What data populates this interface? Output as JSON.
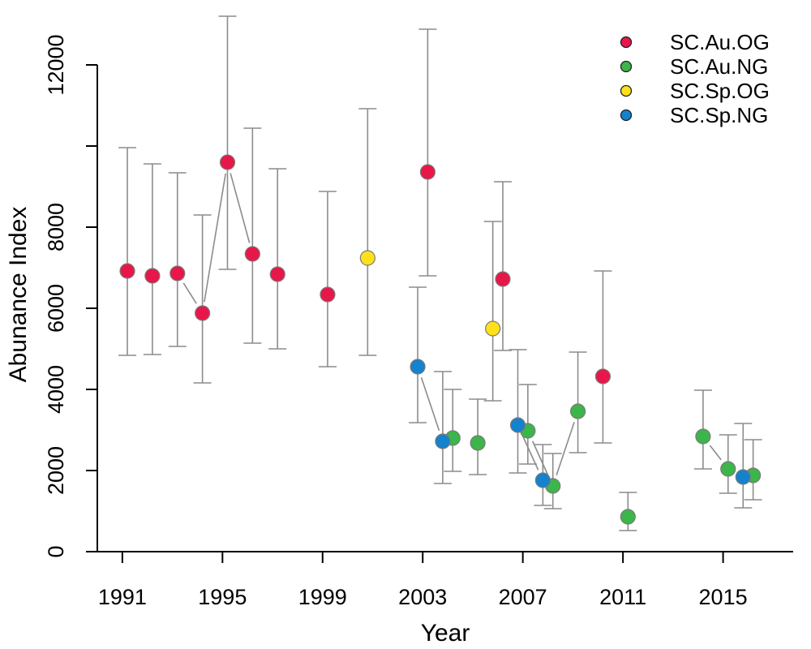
{
  "chart_data": {
    "type": "scatter",
    "title": "",
    "xlabel": "Year",
    "ylabel": "Abunance Index",
    "xlim": [
      1990,
      2017.8
    ],
    "ylim": [
      0,
      13200
    ],
    "x_ticks": [
      1991,
      1995,
      1999,
      2003,
      2007,
      2011,
      2015
    ],
    "y_ticks": [
      0,
      2000,
      4000,
      6000,
      8000,
      10000,
      12000
    ],
    "y_tick_labels": [
      "0",
      "2000",
      "4000",
      "6000",
      "8000",
      "",
      "12000"
    ],
    "error_bars": true,
    "grid": false,
    "legend_position": "top-right",
    "series": [
      {
        "name": "SC.Au.OG",
        "color": "#E8174A",
        "points": [
          {
            "x": 1991.2,
            "y": 6920,
            "lo": 4840,
            "hi": 9960
          },
          {
            "x": 1992.2,
            "y": 6800,
            "lo": 4860,
            "hi": 9560
          },
          {
            "x": 1993.2,
            "y": 6860,
            "lo": 5060,
            "hi": 9340
          },
          {
            "x": 1994.2,
            "y": 5880,
            "lo": 4160,
            "hi": 8300
          },
          {
            "x": 1995.2,
            "y": 9600,
            "lo": 6960,
            "hi": 13200
          },
          {
            "x": 1996.2,
            "y": 7340,
            "lo": 5140,
            "hi": 10440
          },
          {
            "x": 1997.2,
            "y": 6840,
            "lo": 5000,
            "hi": 9440
          },
          {
            "x": 1999.2,
            "y": 6340,
            "lo": 4560,
            "hi": 8880
          },
          {
            "x": 2003.2,
            "y": 9360,
            "lo": 6800,
            "hi": 12880
          },
          {
            "x": 2006.2,
            "y": 6720,
            "lo": 4960,
            "hi": 9120
          },
          {
            "x": 2010.2,
            "y": 4320,
            "lo": 2680,
            "hi": 6920
          }
        ]
      },
      {
        "name": "SC.Au.NG",
        "color": "#3CB54A",
        "points": [
          {
            "x": 2004.2,
            "y": 2800,
            "lo": 1980,
            "hi": 4000
          },
          {
            "x": 2005.2,
            "y": 2680,
            "lo": 1900,
            "hi": 3760
          },
          {
            "x": 2007.2,
            "y": 2980,
            "lo": 2160,
            "hi": 4120
          },
          {
            "x": 2008.2,
            "y": 1620,
            "lo": 1060,
            "hi": 2420
          },
          {
            "x": 2009.2,
            "y": 3460,
            "lo": 2440,
            "hi": 4920
          },
          {
            "x": 2011.2,
            "y": 860,
            "lo": 520,
            "hi": 1460
          },
          {
            "x": 2014.2,
            "y": 2840,
            "lo": 2040,
            "hi": 3980
          },
          {
            "x": 2015.2,
            "y": 2040,
            "lo": 1440,
            "hi": 2880
          },
          {
            "x": 2016.2,
            "y": 1880,
            "lo": 1280,
            "hi": 2760
          }
        ]
      },
      {
        "name": "SC.Sp.OG",
        "color": "#FFE01A",
        "points": [
          {
            "x": 2000.8,
            "y": 7240,
            "lo": 4840,
            "hi": 10920
          },
          {
            "x": 2005.8,
            "y": 5500,
            "lo": 3720,
            "hi": 8140
          }
        ]
      },
      {
        "name": "SC.Sp.NG",
        "color": "#1482CC",
        "points": [
          {
            "x": 2002.8,
            "y": 4560,
            "lo": 3180,
            "hi": 6520
          },
          {
            "x": 2003.8,
            "y": 2720,
            "lo": 1680,
            "hi": 4440
          },
          {
            "x": 2006.8,
            "y": 3120,
            "lo": 1940,
            "hi": 4980
          },
          {
            "x": 2007.8,
            "y": 1760,
            "lo": 1140,
            "hi": 2640
          },
          {
            "x": 2015.8,
            "y": 1840,
            "lo": 1080,
            "hi": 3160
          }
        ]
      }
    ],
    "connectors": [
      [
        1993.2,
        6860,
        1994.2,
        5880
      ],
      [
        1994.2,
        5880,
        1995.2,
        9600
      ],
      [
        1995.2,
        9600,
        1996.2,
        7340
      ],
      [
        2002.8,
        4560,
        2003.8,
        2720
      ],
      [
        2006.8,
        3120,
        2007.8,
        1760
      ],
      [
        2007.2,
        2980,
        2008.2,
        1620
      ],
      [
        2008.2,
        1620,
        2009.2,
        3460
      ],
      [
        2014.2,
        2840,
        2015.2,
        2040
      ]
    ]
  }
}
